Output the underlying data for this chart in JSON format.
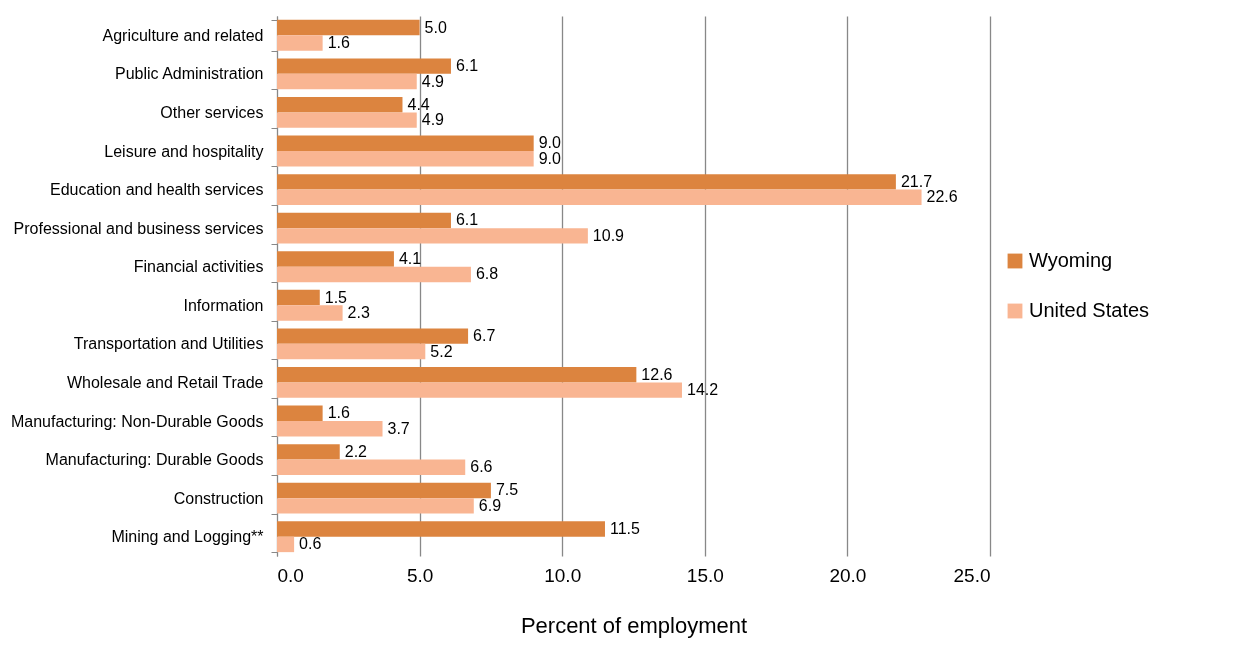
{
  "chart_data": {
    "type": "bar",
    "orientation": "horizontal",
    "xlabel": "Percent of employment",
    "categories": [
      "Agriculture and related",
      "Public Administration",
      "Other services",
      "Leisure and hospitality",
      "Education and health services",
      "Professional and business services",
      "Financial activities",
      "Information",
      "Transportation and Utilities",
      "Wholesale and Retail Trade",
      "Manufacturing: Non-Durable Goods",
      "Manufacturing: Durable Goods",
      "Construction",
      "Mining and Logging**"
    ],
    "series": [
      {
        "name": "Wyoming",
        "color": "#dc843f",
        "values": [
          5.0,
          6.1,
          4.4,
          9.0,
          21.7,
          6.1,
          4.1,
          1.5,
          6.7,
          12.6,
          1.6,
          2.2,
          7.5,
          11.5
        ],
        "value_labels": [
          "5.0",
          "6.1",
          "4.4",
          "9.0",
          "21.7",
          "6.1",
          "4.1",
          "1.5",
          "6.7",
          "12.6",
          "1.6",
          "2.2",
          "7.5",
          "11.5"
        ]
      },
      {
        "name": "United States",
        "color": "#f9b592",
        "values": [
          1.6,
          4.9,
          4.9,
          9.0,
          22.6,
          10.9,
          6.8,
          2.3,
          5.2,
          14.2,
          3.7,
          6.6,
          6.9,
          0.6
        ],
        "value_labels": [
          "1.6",
          "4.9",
          "4.9",
          "9.0",
          "22.6",
          "10.9",
          "6.8",
          "2.3",
          "5.2",
          "14.2",
          "3.7",
          "6.6",
          "6.9",
          "0.6"
        ]
      }
    ],
    "xlim": [
      0,
      25
    ],
    "xticks": [
      {
        "value": 0,
        "label": "0.0"
      },
      {
        "value": 5,
        "label": "5.0"
      },
      {
        "value": 10,
        "label": "10.0"
      },
      {
        "value": 15,
        "label": "15.0"
      },
      {
        "value": 20,
        "label": "20.0"
      },
      {
        "value": 25,
        "label": "25.0"
      }
    ],
    "grid": "x",
    "legend": "right"
  }
}
